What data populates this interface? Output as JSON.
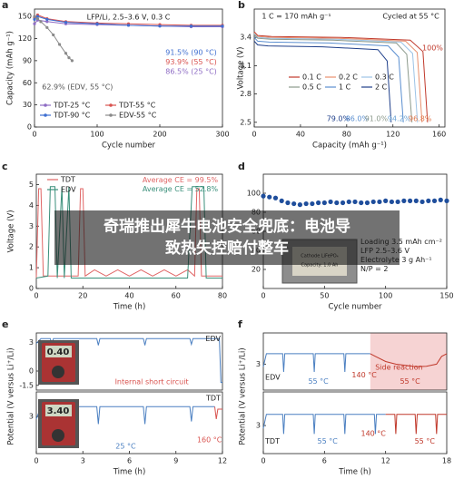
{
  "chart_data": [
    {
      "panel": "a",
      "type": "line",
      "markers": true,
      "title": "LFP/Li, 2.5–3.6 V, 0.3 C",
      "x_label": "Cycle number",
      "y_label": "Capacity (mAh g⁻¹)",
      "xlim": [
        0,
        300
      ],
      "xticks": [
        0,
        100,
        200,
        300
      ],
      "ylim": [
        0,
        160
      ],
      "yticks": [
        0,
        30,
        60,
        90,
        120,
        150
      ],
      "legend": "lower left",
      "annotations": [
        "91.5% (90 °C)",
        "93.9% (55 °C)",
        "86.5% (25 °C)",
        "62.9% (EDV, 55 °C)"
      ],
      "series": [
        {
          "name": "TDT-25 °C",
          "color": "#8e6cc4",
          "x": [
            0,
            5,
            20,
            50,
            100,
            150,
            200,
            250,
            300
          ],
          "values": [
            140,
            145,
            143,
            140,
            139,
            138,
            137,
            136,
            136
          ]
        },
        {
          "name": "TDT-55 °C",
          "color": "#d9534f",
          "x": [
            0,
            5,
            20,
            50,
            100,
            150,
            200,
            250,
            300
          ],
          "values": [
            148,
            152,
            147,
            143,
            141,
            140,
            139,
            138,
            138
          ]
        },
        {
          "name": "TDT-90 °C",
          "color": "#3f6fd1",
          "x": [
            0,
            5,
            20,
            50,
            100,
            150,
            200,
            250,
            300
          ],
          "values": [
            146,
            150,
            146,
            142,
            140,
            138,
            137,
            137,
            137
          ]
        },
        {
          "name": "EDV-55 °C",
          "color": "#8a8a8a",
          "x": [
            0,
            5,
            10,
            20,
            30,
            40,
            50,
            55,
            60
          ],
          "values": [
            150,
            147,
            143,
            135,
            125,
            112,
            100,
            94,
            90
          ]
        }
      ]
    },
    {
      "panel": "b",
      "type": "line",
      "x_label": "Capacity (mAh g⁻¹)",
      "y_label": "Voltage (V)",
      "xlim": [
        0,
        165
      ],
      "xticks": [
        0,
        40,
        80,
        120,
        160
      ],
      "ylim": [
        2.45,
        3.7
      ],
      "yticks": [
        2.5,
        2.8,
        3.1,
        3.4
      ],
      "legend": "center",
      "annotations": [
        "1 C = 170 mAh g⁻¹",
        "Cycled at 55 °C",
        "100%",
        "79.0%",
        "86.0%",
        "91.0%",
        "94.2%",
        "96.8%"
      ],
      "series": [
        {
          "name": "0.1 C",
          "color": "#c0392b",
          "x": [
            0,
            3,
            15,
            75,
            135,
            146,
            150
          ],
          "values": [
            3.46,
            3.42,
            3.41,
            3.4,
            3.37,
            3.25,
            2.5
          ]
        },
        {
          "name": "0.2 C",
          "color": "#e8906d",
          "x": [
            0,
            3,
            15,
            73,
            131,
            141,
            145.2
          ],
          "values": [
            3.45,
            3.41,
            3.4,
            3.39,
            3.36,
            3.24,
            2.5
          ]
        },
        {
          "name": "0.3 C",
          "color": "#9cc3e6",
          "x": [
            0,
            3,
            14,
            71,
            127,
            137,
            141.3
          ],
          "values": [
            3.44,
            3.4,
            3.39,
            3.38,
            3.35,
            3.23,
            2.5
          ]
        },
        {
          "name": "0.5 C",
          "color": "#8c9a8c",
          "x": [
            0,
            3,
            14,
            68,
            123,
            132,
            136.5
          ],
          "values": [
            3.43,
            3.39,
            3.38,
            3.37,
            3.34,
            3.22,
            2.5
          ]
        },
        {
          "name": "1 C",
          "color": "#5b8fd0",
          "x": [
            0,
            3,
            13,
            65,
            116,
            125,
            129
          ],
          "values": [
            3.4,
            3.36,
            3.35,
            3.34,
            3.31,
            3.19,
            2.5
          ]
        },
        {
          "name": "2 C",
          "color": "#1f3f8a",
          "x": [
            0,
            3,
            12,
            59,
            107,
            115,
            118.5
          ],
          "values": [
            3.36,
            3.32,
            3.31,
            3.3,
            3.27,
            3.15,
            2.5
          ]
        }
      ]
    },
    {
      "panel": "c",
      "type": "line",
      "x_label": "Time (h)",
      "y_label": "Voltage (V)",
      "xlim": [
        0,
        80
      ],
      "xticks": [
        0,
        20,
        40,
        60,
        80
      ],
      "ylim": [
        0,
        5.5
      ],
      "yticks": [
        0,
        1,
        2,
        3,
        4,
        5
      ],
      "legend": "upper left",
      "annotations": [
        "Average CE = 99.5%",
        "Average CE = 52.8%"
      ],
      "series": [
        {
          "name": "TDT",
          "color": "#e06666",
          "x": [
            0,
            1,
            2,
            3,
            18,
            19,
            20,
            21,
            25,
            30,
            35,
            40,
            45,
            50,
            55,
            60,
            65,
            68,
            69,
            70,
            71,
            80
          ],
          "values": [
            0.5,
            4.8,
            4.8,
            0.6,
            0.6,
            4.8,
            4.8,
            0.6,
            0.9,
            0.6,
            0.9,
            0.6,
            0.9,
            0.6,
            0.9,
            0.6,
            0.9,
            0.6,
            4.8,
            4.8,
            0.6,
            0.6
          ]
        },
        {
          "name": "EDV",
          "color": "#3a8f7a",
          "x": [
            0,
            5,
            6,
            8,
            9,
            11,
            12,
            14,
            15,
            30,
            45,
            60,
            65,
            67,
            68,
            72,
            73,
            80
          ],
          "values": [
            0.5,
            0.6,
            4.9,
            4.9,
            0.5,
            4.9,
            0.5,
            4.9,
            0.5,
            0.5,
            0.5,
            0.5,
            0.5,
            4.9,
            4.9,
            4.9,
            0.5,
            0.5
          ]
        }
      ]
    },
    {
      "panel": "d",
      "type": "scatter",
      "x_label": "Cycle number",
      "xlim": [
        0,
        150
      ],
      "xticks": [
        0,
        50,
        100,
        150
      ],
      "ylim": [
        0,
        120
      ],
      "yticks": [
        20,
        40,
        60,
        80,
        100
      ],
      "annotations": [
        "Loading 3.5 mAh cm⁻²",
        "LFP 2.5–3.6 V",
        "Electrolyte 3 g Ah⁻¹",
        "N/P = 2"
      ],
      "inset_labels": [
        "Cathode LiFePO₄",
        "Capacity: 1.0 Ah"
      ],
      "x": [
        0,
        5,
        10,
        15,
        20,
        25,
        30,
        35,
        40,
        45,
        50,
        55,
        60,
        65,
        70,
        75,
        80,
        85,
        90,
        95,
        100,
        105,
        110,
        115,
        120,
        125,
        130,
        135,
        140,
        145,
        150
      ],
      "series": [
        {
          "color": "#1f4e9c",
          "values": [
            97,
            96,
            95,
            92,
            90,
            89,
            88,
            89,
            89,
            90,
            90,
            91,
            90,
            90,
            91,
            91,
            90,
            90,
            91,
            91,
            92,
            91,
            91,
            92,
            92,
            92,
            91,
            92,
            92,
            93,
            92
          ]
        }
      ]
    },
    {
      "panel": "e",
      "type": "line",
      "y_label": "Potential (V versus Li⁺/Li)",
      "xlim": [
        0,
        12
      ],
      "ylim": [
        -2,
        4
      ],
      "yticks": [
        -1.5,
        0,
        3
      ],
      "annotations": [
        "EDV",
        "Internal short circuit"
      ],
      "inset_labels": [
        "0.40"
      ],
      "series": [
        {
          "color": "#4a7fc1",
          "x": [
            0,
            0.3,
            0.9,
            1,
            1.1,
            3.9,
            4,
            4.1,
            6.9,
            7,
            7.1,
            9.9,
            10,
            10.1,
            11.8,
            11.9,
            12
          ],
          "values": [
            2.9,
            3.4,
            3.4,
            2.8,
            3.4,
            3.4,
            2.7,
            3.4,
            3.4,
            2.7,
            3.4,
            3.4,
            2.8,
            3.4,
            3.4,
            -1.2,
            -1.2
          ]
        }
      ]
    },
    {
      "type": "line",
      "x_label": "Time (h)",
      "xlim": [
        0,
        12
      ],
      "xticks": [
        0,
        3,
        6,
        9,
        12
      ],
      "ylim": [
        1.5,
        4
      ],
      "yticks": [
        3
      ],
      "annotations": [
        "TDT",
        "25 °C",
        "160 °C"
      ],
      "inset_labels": [
        "3.40"
      ],
      "series": [
        {
          "color": "#4a7fc1",
          "x": [
            0,
            0.3,
            0.9,
            1,
            1.1,
            3.9,
            4,
            4.1,
            6.9,
            7,
            7.1,
            9.9,
            10,
            10.1,
            11.5
          ],
          "values": [
            2.9,
            3.4,
            3.4,
            2.8,
            3.4,
            3.4,
            2.7,
            3.4,
            3.4,
            2.7,
            3.4,
            3.4,
            2.8,
            3.4,
            3.4
          ]
        },
        {
          "color": "#d9534f",
          "x": [
            11.5,
            11.6,
            11.7,
            12
          ],
          "values": [
            3.4,
            2.9,
            3.3,
            3.3
          ]
        }
      ]
    },
    {
      "panel": "f",
      "type": "line",
      "y_label": "Potential (V versus Li⁺/Li)",
      "xlim": [
        0,
        18
      ],
      "ylim": [
        2,
        4.2
      ],
      "yticks": [
        3
      ],
      "shade": true,
      "annotations": [
        "Side reaction",
        "EDV",
        "55 °C",
        "140 °C",
        "55 °C"
      ],
      "series": [
        {
          "color": "#4a7fc1",
          "x": [
            0,
            0.3,
            1.9,
            2,
            2.1,
            4.9,
            5,
            5.1,
            7.9,
            8,
            8.1,
            10.5
          ],
          "values": [
            2.9,
            3.4,
            3.4,
            2.7,
            3.4,
            3.4,
            2.7,
            3.4,
            3.4,
            2.7,
            3.4,
            3.4
          ]
        },
        {
          "color": "#c0392b",
          "x": [
            10.5,
            11,
            12,
            13,
            14,
            15,
            16,
            17,
            17.5,
            18
          ],
          "values": [
            3.4,
            3.3,
            3.1,
            3,
            2.95,
            2.9,
            2.92,
            3,
            3.3,
            3.4
          ]
        }
      ]
    },
    {
      "type": "line",
      "x_label": "Time (h)",
      "xlim": [
        0,
        18
      ],
      "xticks": [
        0,
        6,
        12,
        18
      ],
      "ylim": [
        2,
        4.2
      ],
      "yticks": [
        3
      ],
      "annotations": [
        "TDT",
        "55 °C",
        "140 °C",
        "55 °C"
      ],
      "series": [
        {
          "color": "#4a7fc1",
          "x": [
            0,
            0.3,
            1.9,
            2,
            2.1,
            4.9,
            5,
            5.1,
            7.9,
            8,
            8.1,
            10.9,
            11,
            11.1,
            12
          ],
          "values": [
            2.9,
            3.4,
            3.4,
            2.7,
            3.4,
            3.4,
            2.7,
            3.4,
            3.4,
            2.7,
            3.4,
            3.4,
            2.7,
            3.4,
            3.4
          ]
        },
        {
          "color": "#c0392b",
          "x": [
            12,
            12.9,
            13,
            13.1,
            14.9,
            15,
            15.1,
            16.9,
            17,
            17.1,
            18
          ],
          "values": [
            3.4,
            3.4,
            2.7,
            3.4,
            3.4,
            2.7,
            3.4,
            3.4,
            2.7,
            3.4,
            3.4
          ]
        }
      ]
    }
  ],
  "overlay_caption": [
    "奇瑞推出犀牛电池安全兜底：电池导",
    "致热失控赔付整车"
  ]
}
